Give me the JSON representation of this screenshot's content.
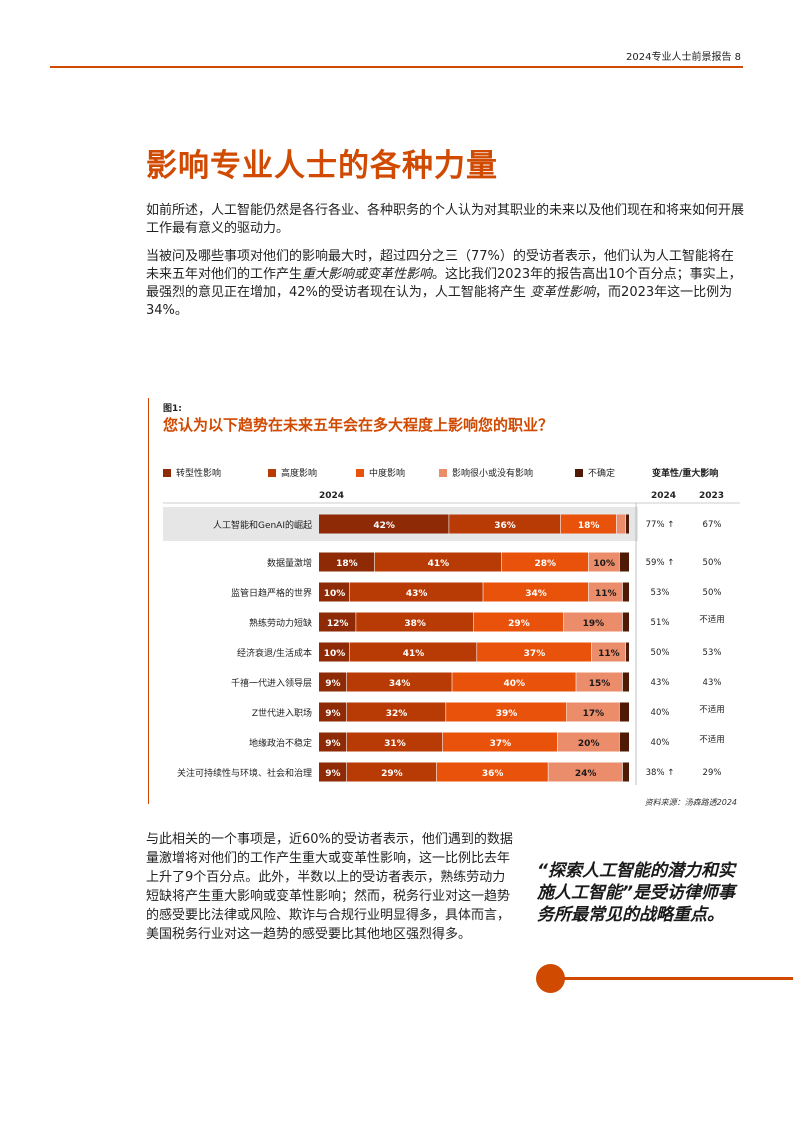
{
  "header": {
    "title": "2024专业人士前景报告  8"
  },
  "page_title": "影响专业人士的各种力量",
  "paragraphs": {
    "p1": "如前所述，人工智能仍然是各行各业、各种职务的个人认为对其职业的未来以及他们现在和将来如何开展工作最有意义的驱动力。",
    "p2_a": "当被问及哪些事项对他们的影响最大时，超过四分之三（77%）的受访者表示，他们认为人工智能将在未来五年对他们的工作产生",
    "p2_b": "重大影响或变革性影响",
    "p2_c": "。这比我们2023年的报告高出10个百分点；事实上，最强烈的意见正在增加，42%的受访者现在认为，人工智能将产生 ",
    "p2_d": "变革性影响",
    "p2_e": "，而2023年这一比例为34%。",
    "p3": "与此相关的一个事项是，近60%的受访者表示，他们遇到的数据量激增将对他们的工作产生重大或变革性影响，这一比例比去年上升了9个百分点。此外，半数以上的受访者表示，熟练劳动力短缺将产生重大影响或变革性影响；然而，税务行业对这一趋势的感受要比法律或风险、欺诈与合规行业明显得多，具体而言，美国税务行业对这一趋势的感受要比其他地区强烈得多。"
  },
  "figure": {
    "label": "图1:",
    "title": "您认为以下趋势在未来五年会在多大程度上影响您的职业？",
    "source": "资料来源：汤森路透2024",
    "col_2024": "2024",
    "impact_head": "变革性/重大影响",
    "impact_2024": "2024",
    "impact_2023": "2023"
  },
  "chart_data": {
    "type": "bar",
    "orientation": "horizontal",
    "stacked": true,
    "percent_scale": true,
    "title": "您认为以下趋势在未来五年会在多大程度上影响您的职业？",
    "categories": [
      "人工智能和GenAI的崛起",
      "数据量激增",
      "监管日趋严格的世界",
      "熟练劳动力短缺",
      "经济衰退/生活成本",
      "千禧一代进入领导层",
      "Z世代进入职场",
      "地缘政治不稳定",
      "关注可持续性与环境、社会和治理"
    ],
    "series": [
      {
        "name": "转型性影响",
        "color": "#8e2b06",
        "values": [
          42,
          18,
          10,
          12,
          10,
          9,
          9,
          9,
          9
        ]
      },
      {
        "name": "高度影响",
        "color": "#b83a05",
        "values": [
          36,
          41,
          43,
          38,
          41,
          34,
          32,
          31,
          29
        ]
      },
      {
        "name": "中度影响",
        "color": "#e8520a",
        "values": [
          18,
          28,
          34,
          29,
          37,
          40,
          39,
          37,
          36
        ]
      },
      {
        "name": "影响很小或没有影响",
        "color": "#eb8c6a",
        "values": [
          3,
          10,
          11,
          19,
          11,
          15,
          17,
          20,
          24
        ]
      },
      {
        "name": "不确定",
        "color": "#4f1a05",
        "values": [
          1,
          3,
          2,
          2,
          1,
          2,
          3,
          3,
          2
        ]
      }
    ],
    "value_labels": [
      [
        "42%",
        "36%",
        "18%",
        "",
        ""
      ],
      [
        "18%",
        "41%",
        "28%",
        "10%",
        ""
      ],
      [
        "10%",
        "43%",
        "34%",
        "11%",
        ""
      ],
      [
        "12%",
        "38%",
        "29%",
        "19%",
        ""
      ],
      [
        "10%",
        "41%",
        "37%",
        "11%",
        ""
      ],
      [
        "9%",
        "34%",
        "40%",
        "15%",
        ""
      ],
      [
        "9%",
        "32%",
        "39%",
        "17%",
        ""
      ],
      [
        "9%",
        "31%",
        "37%",
        "20%",
        ""
      ],
      [
        "9%",
        "29%",
        "36%",
        "24%",
        ""
      ]
    ],
    "impact_2024": [
      "77% ↑",
      "59% ↑",
      "53%",
      "51%",
      "50%",
      "43%",
      "40%",
      "40%",
      "38% ↑"
    ],
    "impact_2023": [
      "67%",
      "50%",
      "50%",
      "不适用",
      "53%",
      "43%",
      "不适用",
      "不适用",
      "29%"
    ],
    "highlight_row": 0,
    "colors": {
      "accent": "#d04a02",
      "highlight_bg": "#e6e6e6"
    }
  },
  "quote": "“探索人工智能的潜力和实施人工智能”是受访律师事务所最常见的战略重点。"
}
